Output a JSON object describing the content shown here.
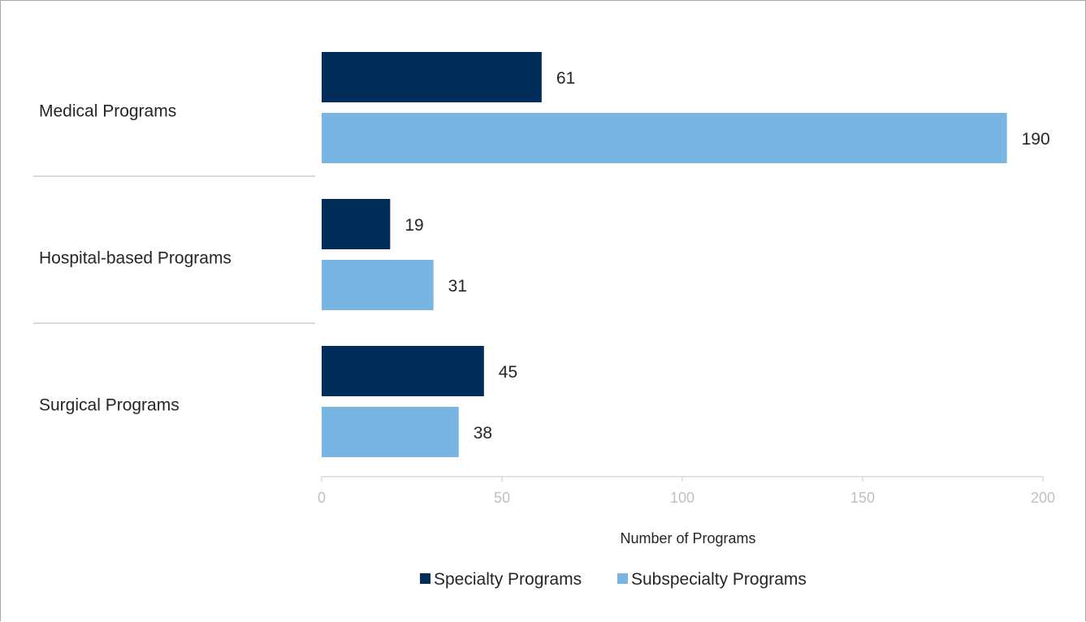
{
  "chart_data": {
    "type": "bar",
    "orientation": "horizontal",
    "categories": [
      "Medical Programs",
      "Hospital-based Programs",
      "Surgical Programs"
    ],
    "series": [
      {
        "name": "Specialty Programs",
        "values": [
          61,
          19,
          45
        ],
        "color": "#002d5a"
      },
      {
        "name": "Subspecialty Programs",
        "values": [
          190,
          31,
          38
        ],
        "color": "#78b5e3"
      }
    ],
    "xlabel": "Number of Programs",
    "ylabel": "",
    "xlim": [
      0,
      200
    ],
    "xticks": [
      0,
      50,
      100,
      150,
      200
    ],
    "grid": false,
    "legend": "bottom",
    "data_labels": true
  }
}
